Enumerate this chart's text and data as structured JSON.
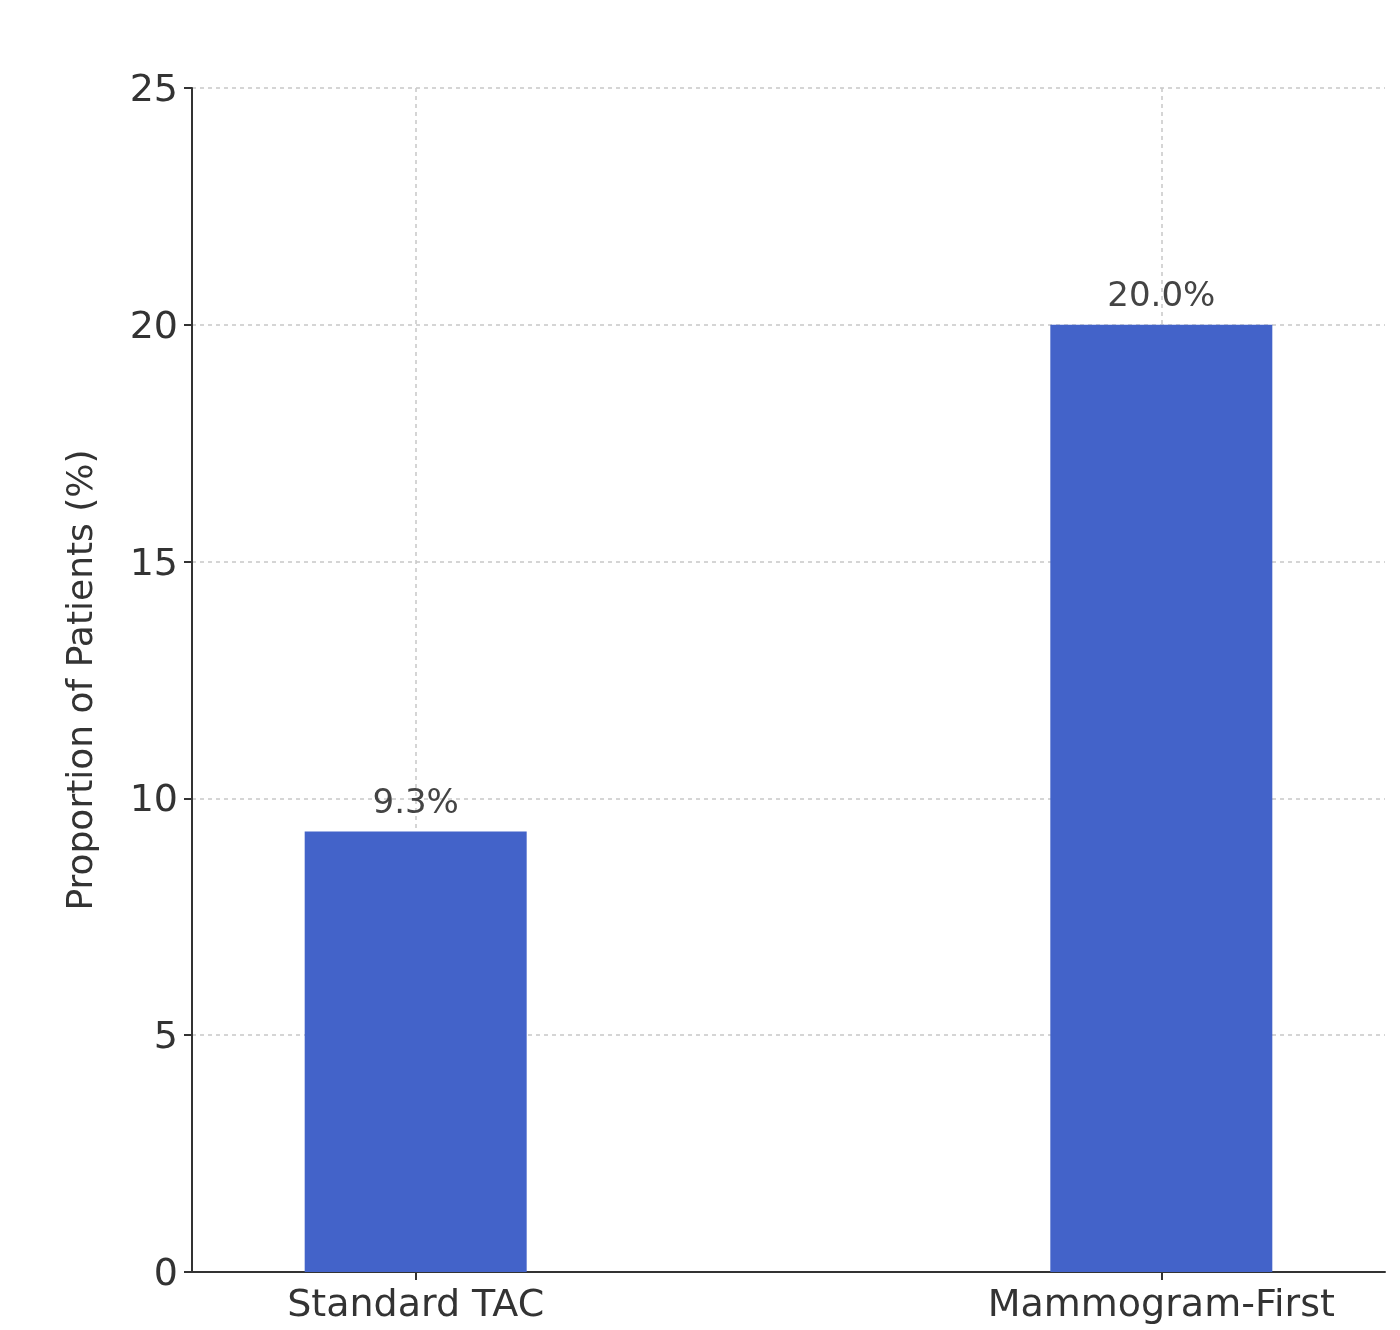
{
  "chart_data": {
    "type": "bar",
    "categories": [
      "Standard TAC",
      "Mammogram-First"
    ],
    "values": [
      9.3,
      20.0
    ],
    "value_labels": [
      "9.3%",
      "20.0%"
    ],
    "color": "#4363c9",
    "ylabel": "Proportion of Patients (%)",
    "ylim": [
      0,
      25
    ],
    "yticks": [
      0,
      5,
      10,
      15,
      20,
      25
    ],
    "grid": true
  }
}
